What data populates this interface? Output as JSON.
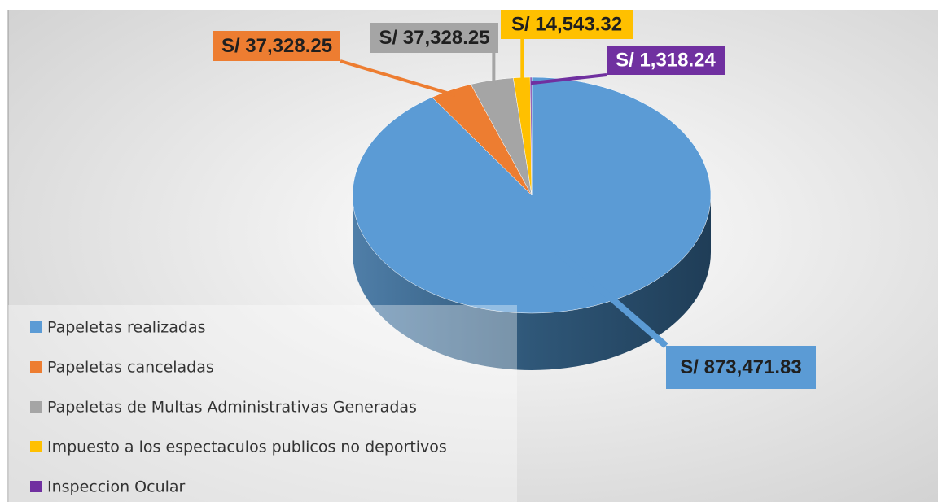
{
  "chart_data": {
    "type": "pie",
    "categories": [
      "Papeletas realizadas",
      "Papeletas canceladas",
      "Papeletas de Multas Administrativas Generadas",
      "Impuesto a los espectaculos publicos no deportivos",
      "Inspeccion Ocular"
    ],
    "values": [
      873471.83,
      37328.25,
      37328.25,
      14543.32,
      1318.24
    ],
    "value_labels": [
      "S/ 873,471.83",
      "S/ 37,328.25",
      "S/ 37,328.25",
      "S/ 14,543.32",
      "S/ 1,318.24"
    ],
    "colors": [
      "#5b9bd5",
      "#ed7d31",
      "#a5a5a5",
      "#ffc000",
      "#7030a0"
    ],
    "legend": "bottom-left"
  }
}
